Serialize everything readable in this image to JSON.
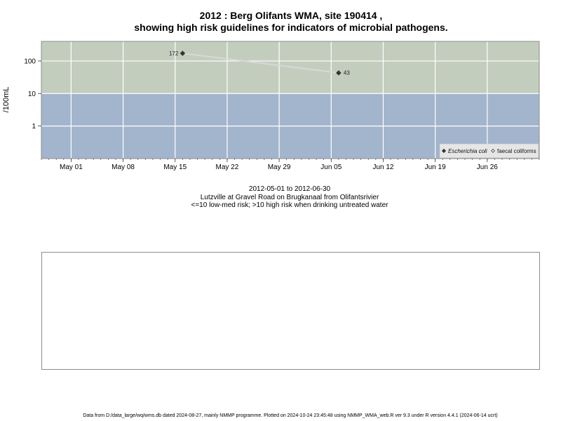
{
  "page": {
    "title_line1": "2012 : Berg Olifants WMA, site 190414 ,",
    "title_line2": "showing high risk guidelines for indicators of microbial pathogens.",
    "subtitle_dates": "2012-05-01 to 2012-06-30",
    "subtitle_site": "Lutzville at Gravel Road on Brugkanaal from Olifantsrivier",
    "subtitle_risk": "<=10 low-med risk; >10 high risk when drinking untreated water",
    "footer": "Data from D:/data_large/wq/wms.db dated 2024-08-27, mainly NMMP programme. Plotted on 2024-10-24 23:45:48 using NMMP_WMA_web.R ver 9.3 under R version 4.4.1 (2024-06-14 ucrt)"
  },
  "chart_data": {
    "type": "line",
    "ylabel": "/100mL",
    "y_scale": "log10",
    "ylim": [
      0.1,
      400
    ],
    "x_range": [
      "2012-04-27",
      "2012-07-03"
    ],
    "x_ticks": [
      {
        "date": "2012-05-01",
        "label": "May 01"
      },
      {
        "date": "2012-05-08",
        "label": "May 08"
      },
      {
        "date": "2012-05-15",
        "label": "May 15"
      },
      {
        "date": "2012-05-22",
        "label": "May 22"
      },
      {
        "date": "2012-05-29",
        "label": "May 29"
      },
      {
        "date": "2012-06-05",
        "label": "Jun 05"
      },
      {
        "date": "2012-06-12",
        "label": "Jun 12"
      },
      {
        "date": "2012-06-19",
        "label": "Jun 19"
      },
      {
        "date": "2012-06-26",
        "label": "Jun 26"
      }
    ],
    "y_ticks": [
      {
        "value": 1,
        "label": "1"
      },
      {
        "value": 10,
        "label": "10"
      },
      {
        "value": 100,
        "label": "100"
      }
    ],
    "bands": [
      {
        "from": 0.1,
        "to": 10,
        "color": "#a3b5cd"
      },
      {
        "from": 10,
        "to": 400,
        "color": "#c3cdbd"
      }
    ],
    "gridline_color": "#ffffff",
    "series": [
      {
        "name": "Escherichia coli",
        "marker": "diamond-filled",
        "color": "#333333",
        "line_color": "#d8d8d8",
        "points": [
          {
            "x": "2012-05-16",
            "y": 172,
            "label": "172"
          },
          {
            "x": "2012-06-06",
            "y": 43,
            "label": "43"
          }
        ]
      }
    ],
    "legend": {
      "position": "bottom-right",
      "entries": [
        {
          "label": "Escherichia coli",
          "marker": "diamond-filled",
          "italic": true
        },
        {
          "label": "faecal coliforms",
          "marker": "diamond-open",
          "italic": false
        }
      ]
    }
  }
}
